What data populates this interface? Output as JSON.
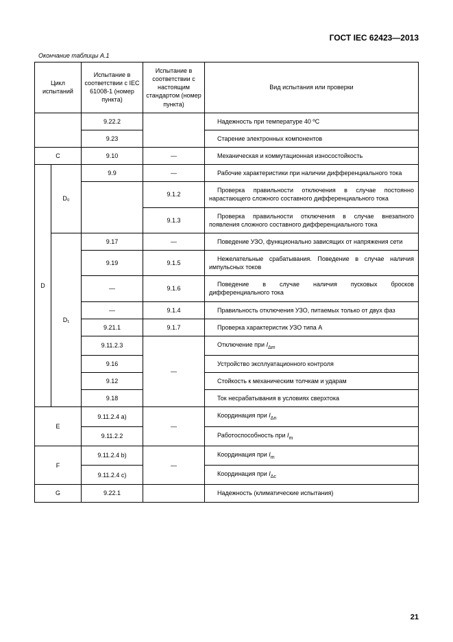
{
  "header": {
    "docCode": "ГОСТ IEC 62423—2013"
  },
  "caption": "Окончание таблицы А.1",
  "columns": {
    "cycle": "Цикл испытаний",
    "iec": "Испытание в соответствии с IEC 61008-1 (номер пункта)",
    "std": "Испытание в соответствии с настоящим стандартом (номер пункта)",
    "desc": "Вид испытания или проверки"
  },
  "cells": {
    "r1_iec": "9.22.2",
    "r1_desc": "Надежность при температуре 40 ºС",
    "r2_iec": "9.23",
    "r2_desc": "Старение электронных компонентов",
    "c_label": "С",
    "r3_iec": "9.10",
    "r3_std": "—",
    "r3_desc": "Механическая и коммутационная износостойкость",
    "d_label": "D",
    "d0_label": "D₀",
    "d1_label": "D₁",
    "r4_iec": "9.9",
    "r4_std": "—",
    "r4_desc": "Рабочие характеристики при наличии дифференциального тока",
    "r5_std": "9.1.2",
    "r5_desc": "Проверка правильности отключения в случае постоянно нарастающего сложного составного дифференциального тока",
    "r6_std": "9.1.3",
    "r6_desc": "Проверка правильности отключения в случае внезапного появления сложного составного дифференциального тока",
    "r7_iec": "9.17",
    "r7_std": "—",
    "r7_desc": "Поведение УЗО, функционально зависящих от напряжения сети",
    "r8_iec": "9.19",
    "r8_std": "9.1.5",
    "r8_desc": "Нежелательные срабатывания. Поведение в случае наличия импульсных токов",
    "r9_iec": "—",
    "r9_std": "9.1.6",
    "r9_desc": "Поведение в случае наличия пусковых бросков дифференциального тока",
    "r10_iec": "—",
    "r10_std": "9.1.4",
    "r10_desc": "Правильность отключения УЗО, питаемых только от двух фаз",
    "r11_iec": "9.21.1",
    "r11_std": "9.1.7",
    "r11_desc": "Проверка характеристик УЗО типа А",
    "r12_iec": "9.11.2.3",
    "r13_iec": "9.16",
    "r13_desc": "Устройство эксплуатационного контроля",
    "r14_iec": "9.12",
    "r14_desc": "Стойкость к механическим толчкам и ударам",
    "r15_iec": "9.18",
    "r15_desc": "Ток несрабатывания в условиях сверхтока",
    "e_label": "Е",
    "r16_iec": "9.11.2.4 a)",
    "r17_iec": "9.11.2.2",
    "f_label": "F",
    "r18_iec": "9.11.2.4 b)",
    "r19_iec": "9.11.2.4 c)",
    "g_label": "G",
    "r20_iec": "9.22.1",
    "r20_desc": "Надежность (климатические испытания)",
    "dash": "—",
    "pageNumber": "21"
  },
  "formulas": {
    "r12_desc_pre": "Отключение при ",
    "r12_desc_i": "I",
    "r12_desc_sub": "Δm",
    "r16_desc_pre": "Координация при ",
    "r16_desc_i": "I",
    "r16_desc_sub": "Δn",
    "r17_desc_pre": "Работоспособность при ",
    "r17_desc_i": "I",
    "r17_desc_sub": "m",
    "r18_desc_pre": "Координация при ",
    "r18_desc_i": "I",
    "r18_desc_sub": "m",
    "r19_desc_pre": "Координация при ",
    "r19_desc_i": "I",
    "r19_desc_sub": "Δc"
  }
}
